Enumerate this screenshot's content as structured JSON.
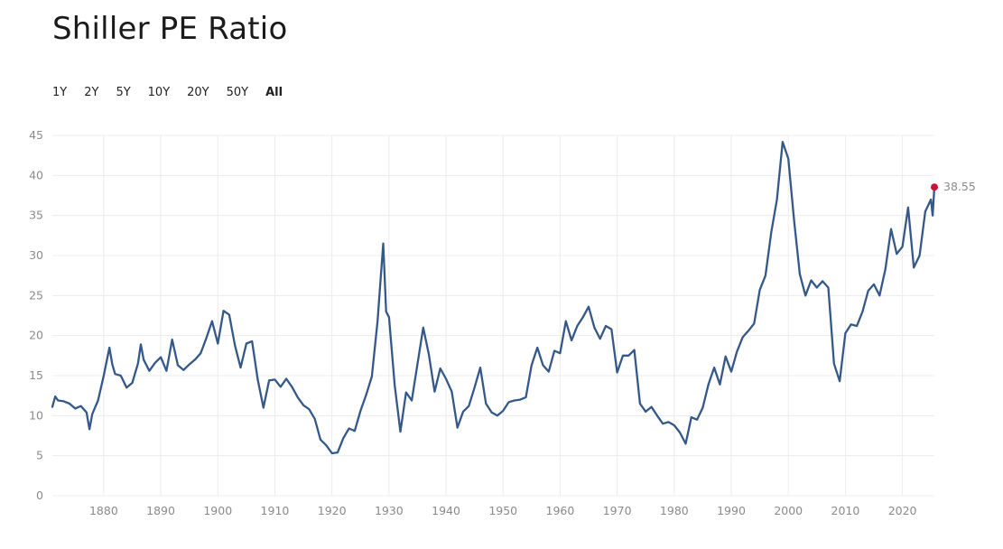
{
  "header": {
    "title": "Shiller PE Ratio"
  },
  "ranges": [
    {
      "label": "1Y",
      "active": false
    },
    {
      "label": "2Y",
      "active": false
    },
    {
      "label": "5Y",
      "active": false
    },
    {
      "label": "10Y",
      "active": false
    },
    {
      "label": "20Y",
      "active": false
    },
    {
      "label": "50Y",
      "active": false
    },
    {
      "label": "All",
      "active": true
    }
  ],
  "colors": {
    "line": "#35588a",
    "marker": "#d0103a",
    "grid": "#ececec",
    "tick": "#8a8a8a"
  },
  "chart_data": {
    "type": "line",
    "title": "Shiller PE Ratio",
    "xlabel": "",
    "ylabel": "",
    "xlim": [
      1871,
      2025.6
    ],
    "ylim": [
      0,
      45
    ],
    "yticks": [
      0,
      5,
      10,
      15,
      20,
      25,
      30,
      35,
      40,
      45
    ],
    "xticks": [
      1880,
      1890,
      1900,
      1910,
      1920,
      1930,
      1940,
      1950,
      1960,
      1970,
      1980,
      1990,
      2000,
      2010,
      2020
    ],
    "grid": true,
    "last_value_label": "38.55",
    "series": [
      {
        "name": "Shiller PE Ratio",
        "x": [
          1871,
          1871.5,
          1872,
          1873,
          1874,
          1875,
          1876,
          1877,
          1877.5,
          1878,
          1879,
          1880,
          1881,
          1881.5,
          1882,
          1883,
          1884,
          1885,
          1886,
          1886.5,
          1887,
          1888,
          1889,
          1890,
          1891,
          1892,
          1893,
          1894,
          1895,
          1896,
          1897,
          1898,
          1899,
          1900,
          1901,
          1902,
          1903,
          1904,
          1905,
          1906,
          1907,
          1908,
          1909,
          1910,
          1911,
          1912,
          1913,
          1914,
          1915,
          1916,
          1917,
          1918,
          1919,
          1920,
          1921,
          1922,
          1923,
          1924,
          1925,
          1926,
          1927,
          1928,
          1929,
          1929.5,
          1930,
          1931,
          1932,
          1933,
          1934,
          1935,
          1936,
          1937,
          1938,
          1939,
          1940,
          1941,
          1942,
          1943,
          1944,
          1945,
          1946,
          1947,
          1948,
          1949,
          1950,
          1951,
          1952,
          1953,
          1954,
          1955,
          1956,
          1957,
          1958,
          1959,
          1960,
          1961,
          1962,
          1963,
          1964,
          1965,
          1966,
          1967,
          1968,
          1969,
          1970,
          1971,
          1972,
          1973,
          1974,
          1975,
          1976,
          1977,
          1978,
          1979,
          1980,
          1981,
          1982,
          1983,
          1984,
          1985,
          1986,
          1987,
          1988,
          1989,
          1990,
          1991,
          1992,
          1993,
          1994,
          1995,
          1996,
          1997,
          1998,
          1999,
          2000,
          2001,
          2002,
          2003,
          2004,
          2005,
          2006,
          2007,
          2008,
          2009,
          2010,
          2011,
          2012,
          2013,
          2014,
          2015,
          2016,
          2017,
          2018,
          2019,
          2020,
          2021,
          2022,
          2023,
          2024,
          2025,
          2025.3,
          2025.6
        ],
        "values": [
          11.1,
          12.4,
          11.9,
          11.8,
          11.5,
          10.9,
          11.2,
          10.4,
          8.3,
          10.2,
          11.9,
          15.0,
          18.5,
          16.4,
          15.2,
          15.0,
          13.5,
          14.1,
          16.5,
          18.9,
          17.0,
          15.6,
          16.6,
          17.3,
          15.6,
          19.5,
          16.3,
          15.7,
          16.4,
          17.0,
          17.8,
          19.7,
          21.8,
          19.0,
          23.1,
          22.6,
          18.8,
          16.0,
          19.0,
          19.3,
          14.5,
          11.0,
          14.4,
          14.5,
          13.6,
          14.6,
          13.6,
          12.3,
          11.3,
          10.8,
          9.6,
          7.0,
          6.3,
          5.3,
          5.4,
          7.2,
          8.4,
          8.1,
          10.6,
          12.6,
          14.9,
          21.8,
          31.5,
          23.0,
          22.3,
          13.8,
          8.0,
          12.9,
          11.9,
          16.5,
          21.0,
          17.6,
          13.0,
          15.9,
          14.6,
          13.0,
          8.5,
          10.5,
          11.2,
          13.5,
          16.0,
          11.5,
          10.4,
          10.0,
          10.6,
          11.7,
          11.9,
          12.0,
          12.3,
          16.3,
          18.5,
          16.3,
          15.5,
          18.1,
          17.8,
          21.8,
          19.4,
          21.2,
          22.3,
          23.6,
          21.0,
          19.6,
          21.2,
          20.8,
          15.4,
          17.5,
          17.5,
          18.2,
          11.5,
          10.5,
          11.1,
          10.0,
          9.0,
          9.2,
          8.8,
          7.9,
          6.5,
          9.8,
          9.5,
          11.0,
          13.9,
          16.0,
          13.9,
          17.4,
          15.5,
          18.0,
          19.8,
          20.6,
          21.5,
          25.7,
          27.5,
          32.9,
          37.0,
          44.2,
          42.1,
          34.5,
          27.7,
          25.0,
          26.9,
          26.0,
          26.8,
          26.0,
          16.5,
          14.3,
          20.3,
          21.4,
          21.2,
          23.0,
          25.6,
          26.4,
          25.0,
          28.3,
          33.3,
          30.2,
          31.1,
          36.0,
          28.5,
          30.0,
          35.5,
          37.0,
          35.0,
          38.55
        ]
      }
    ]
  }
}
